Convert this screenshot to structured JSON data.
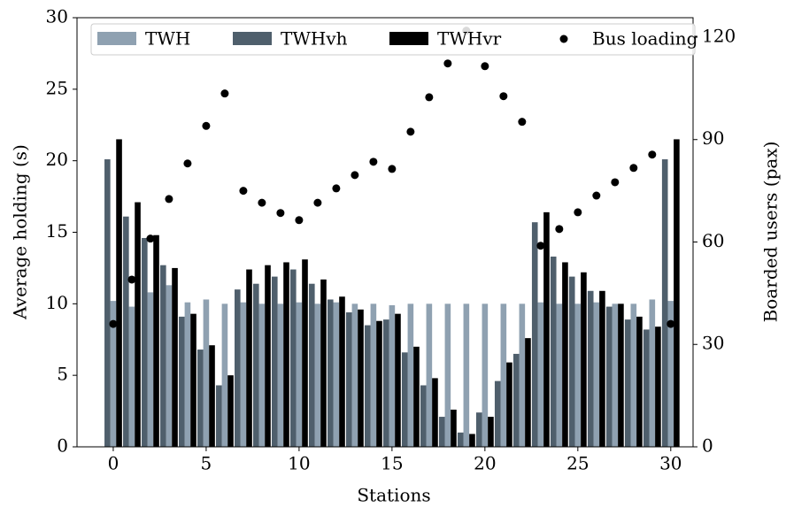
{
  "chart_data": {
    "type": "bar",
    "x": [
      0,
      1,
      2,
      3,
      4,
      5,
      6,
      7,
      8,
      9,
      10,
      11,
      12,
      13,
      14,
      15,
      16,
      17,
      18,
      19,
      20,
      21,
      22,
      23,
      24,
      25,
      26,
      27,
      28,
      29,
      30
    ],
    "xlabel": "Stations",
    "ylabel": "Average holding (s)",
    "y2label": "Boarded users (pax)",
    "xlim": [
      -1.95,
      31.2
    ],
    "xticks": [
      0,
      5,
      10,
      15,
      20,
      25,
      30
    ],
    "ylim": [
      0,
      30
    ],
    "yticks": [
      0,
      5,
      10,
      15,
      20,
      25,
      30
    ],
    "y2lim": [
      0,
      125.7
    ],
    "y2ticks": [
      0,
      30,
      60,
      90,
      120
    ],
    "legend": "upper center",
    "series": [
      {
        "name": "TWH",
        "type": "bar",
        "color": "#8fa1b1",
        "values": [
          10.2,
          9.8,
          10.8,
          11.3,
          10.1,
          10.3,
          10.0,
          10.1,
          10.0,
          10.0,
          10.1,
          10.0,
          10.1,
          10.0,
          10.0,
          9.9,
          10.0,
          10.0,
          10.0,
          10.0,
          10.0,
          10.0,
          10.0,
          10.1,
          10.0,
          10.0,
          10.1,
          10.0,
          10.0,
          10.3,
          10.2
        ]
      },
      {
        "name": "TWHvh",
        "type": "bar",
        "color": "#4f5f6c",
        "values": [
          20.1,
          16.1,
          14.6,
          12.7,
          9.1,
          6.8,
          4.3,
          11.0,
          11.4,
          11.9,
          12.4,
          11.4,
          10.3,
          9.4,
          8.5,
          8.9,
          6.6,
          4.3,
          2.1,
          1.0,
          2.4,
          4.6,
          6.5,
          15.7,
          13.3,
          11.9,
          10.9,
          9.8,
          8.9,
          8.2,
          20.1
        ]
      },
      {
        "name": "TWHvr",
        "type": "bar",
        "color": "#000000",
        "values": [
          21.5,
          17.1,
          14.8,
          12.5,
          9.3,
          7.1,
          5.0,
          12.4,
          12.7,
          12.9,
          13.1,
          11.7,
          10.5,
          9.6,
          8.8,
          9.3,
          7.0,
          4.8,
          2.6,
          0.9,
          2.1,
          5.9,
          7.6,
          16.4,
          12.9,
          12.2,
          10.9,
          10.0,
          9.1,
          8.4,
          21.5
        ]
      },
      {
        "name": "Bus loading",
        "type": "scatter",
        "axis": "y2",
        "color": "#000000",
        "values": [
          36,
          49,
          61,
          72.6,
          83,
          94,
          103.5,
          75,
          71.5,
          68.5,
          66.4,
          71.5,
          75.7,
          79.6,
          83.5,
          81.4,
          92.3,
          102.4,
          112.3,
          121.9,
          111.5,
          102.7,
          95.2,
          58.9,
          63.8,
          68.7,
          73.6,
          77.5,
          81.7,
          85.6,
          36
        ]
      }
    ]
  }
}
